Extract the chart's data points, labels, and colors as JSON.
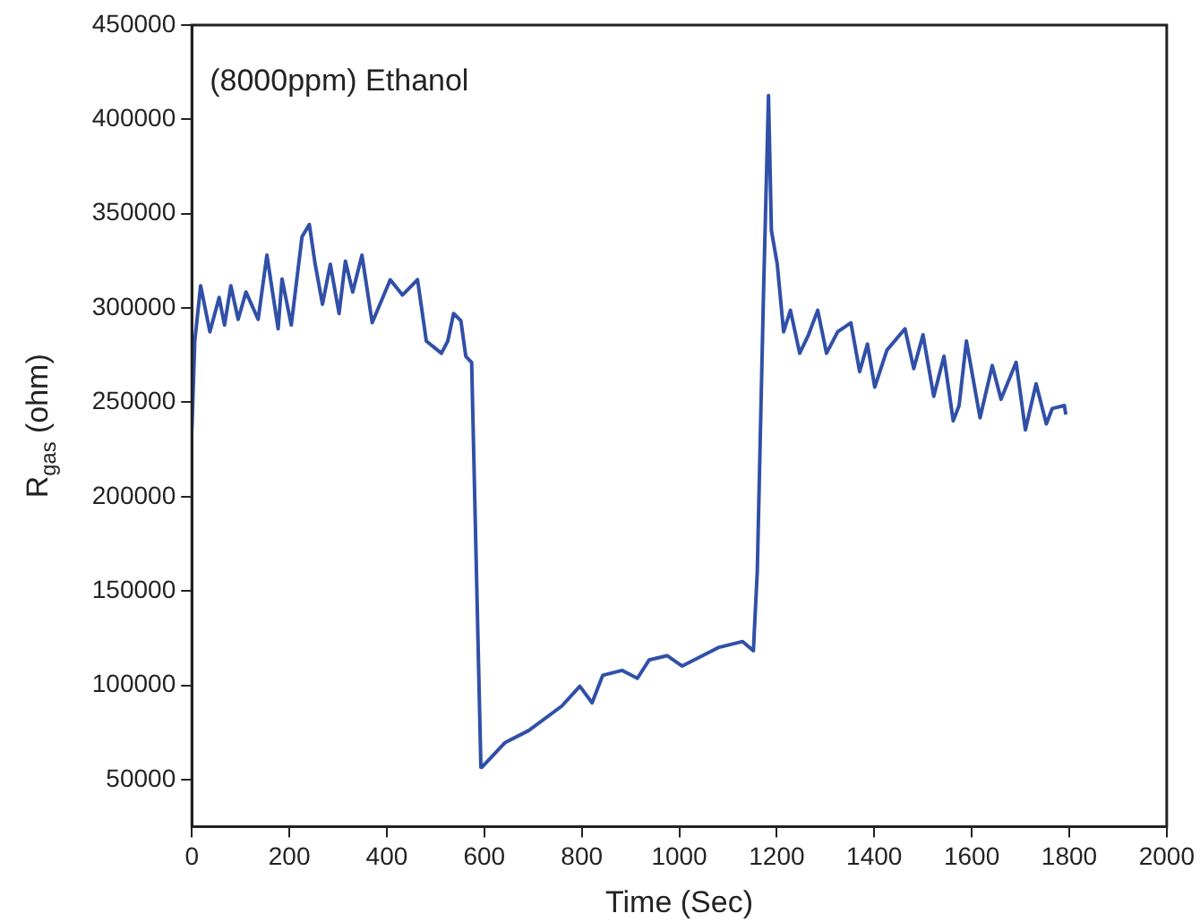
{
  "chart_data": {
    "type": "line",
    "xlabel": "Time (Sec)",
    "ylabel": "R$_{gas}$ (ohm)",
    "annotations": [
      "(8000ppm) Ethanol"
    ],
    "xlim": [
      0,
      2000
    ],
    "xticks": [
      0,
      200,
      400,
      600,
      800,
      1000,
      1200,
      1400,
      1600,
      1800,
      2000
    ],
    "ylim": [
      25000,
      450000
    ],
    "yticks": [
      50000,
      100000,
      150000,
      200000,
      250000,
      300000,
      350000,
      400000,
      450000
    ],
    "grid": false,
    "legend": false,
    "marker": "none",
    "line_style": "solid",
    "series": [
      {
        "color": "#3050a8",
        "x": [
          0,
          6,
          18,
          37,
          56,
          67,
          80,
          95,
          111,
          136,
          154,
          177,
          185,
          204,
          226,
          241,
          253,
          268,
          284,
          302,
          315,
          330,
          349,
          370,
          407,
          432,
          463,
          481,
          512,
          525,
          537,
          552,
          562,
          574,
          593,
          595,
          642,
          691,
          759,
          796,
          821,
          843,
          883,
          914,
          938,
          975,
          1006,
          1080,
          1130,
          1152,
          1160,
          1173,
          1183,
          1189,
          1201,
          1214,
          1228,
          1247,
          1265,
          1284,
          1302,
          1325,
          1352,
          1370,
          1386,
          1401,
          1426,
          1463,
          1481,
          1500,
          1522,
          1543,
          1562,
          1574,
          1589,
          1617,
          1642,
          1660,
          1691,
          1710,
          1732,
          1753,
          1765,
          1790,
          1793
        ],
        "values": [
          235000,
          282500,
          311800,
          287400,
          305600,
          291000,
          311800,
          294000,
          308500,
          294000,
          328000,
          289000,
          315400,
          291000,
          337800,
          344300,
          323200,
          302000,
          323200,
          297100,
          324800,
          308500,
          328000,
          292200,
          315000,
          306900,
          315000,
          282500,
          276000,
          282500,
          297100,
          293200,
          274400,
          271200,
          56500,
          56500,
          69500,
          76000,
          89000,
          99500,
          90700,
          105300,
          107900,
          103700,
          113400,
          115700,
          110200,
          120000,
          123200,
          118300,
          160500,
          310200,
          412600,
          341000,
          323200,
          287400,
          298800,
          276000,
          285800,
          298800,
          276000,
          287400,
          292200,
          266300,
          280900,
          258100,
          277700,
          289000,
          267900,
          285800,
          253200,
          274400,
          240200,
          248300,
          282500,
          241800,
          269500,
          251600,
          271200,
          235400,
          259800,
          238600,
          246700,
          248300,
          243500
        ]
      }
    ]
  }
}
